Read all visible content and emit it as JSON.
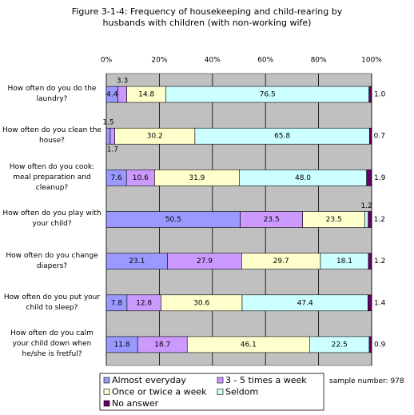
{
  "chart_data": {
    "type": "stacked-barh",
    "title": "Figure 3-1-4: Frequency of housekeeping and child-rearing by husbands with children (with non-working wife)",
    "categories": [
      "How often do you do the laundry?",
      "How often do you clean the house?",
      "How often do you cook: meal preparation and cleanup?",
      "How often do you play with your child?",
      "How often do you change diapers?",
      "How often do you put your child to sleep?",
      "How often do you calm your child down when he/she is fretful?"
    ],
    "series": [
      {
        "name": "Almost everyday",
        "color": "#9999FF",
        "values": [
          4.4,
          1.5,
          7.6,
          50.5,
          23.1,
          7.8,
          11.8
        ],
        "value_labels": [
          "4.4",
          "1.5",
          "7.6",
          "50.5",
          "23.1",
          "7.8",
          "11.8"
        ]
      },
      {
        "name": "3 - 5 times a week",
        "color": "#CC99FF",
        "values": [
          3.3,
          1.7,
          10.6,
          23.5,
          27.9,
          12.8,
          18.7
        ],
        "value_labels": [
          "3.3",
          "1.7",
          "10.6",
          "23.5",
          "27.9",
          "12.8",
          "18.7"
        ]
      },
      {
        "name": "Once or twice a week",
        "color": "#FFFFCC",
        "values": [
          14.8,
          30.2,
          31.9,
          23.5,
          29.7,
          30.6,
          46.1
        ],
        "value_labels": [
          "14.8",
          "30.2",
          "31.9",
          "23.5",
          "29.7",
          "30.6",
          "46.1"
        ]
      },
      {
        "name": "Seldom",
        "color": "#CCFFFF",
        "values": [
          76.5,
          65.8,
          48.0,
          1.2,
          18.1,
          47.4,
          22.5
        ],
        "value_labels": [
          "76.5",
          "65.8",
          "48.0",
          "1.2",
          "18.1",
          "47.4",
          "22.5"
        ]
      },
      {
        "name": "No answer",
        "color": "#660066",
        "values": [
          1.0,
          0.7,
          1.9,
          1.2,
          1.2,
          1.4,
          0.9
        ],
        "value_labels": [
          "1.0",
          "0.7",
          "1.9",
          "1.2",
          "1.2",
          "1.4",
          "0.9"
        ]
      }
    ],
    "xlim": [
      0,
      100
    ],
    "xticks": [
      {
        "value": 0,
        "label": "0%"
      },
      {
        "value": 20,
        "label": "20%"
      },
      {
        "value": 40,
        "label": "40%"
      },
      {
        "value": 60,
        "label": "60%"
      },
      {
        "value": 80,
        "label": "80%"
      },
      {
        "value": 100,
        "label": "100%"
      }
    ],
    "grid": true,
    "legend": "bottom",
    "note": "sample number: 978"
  }
}
